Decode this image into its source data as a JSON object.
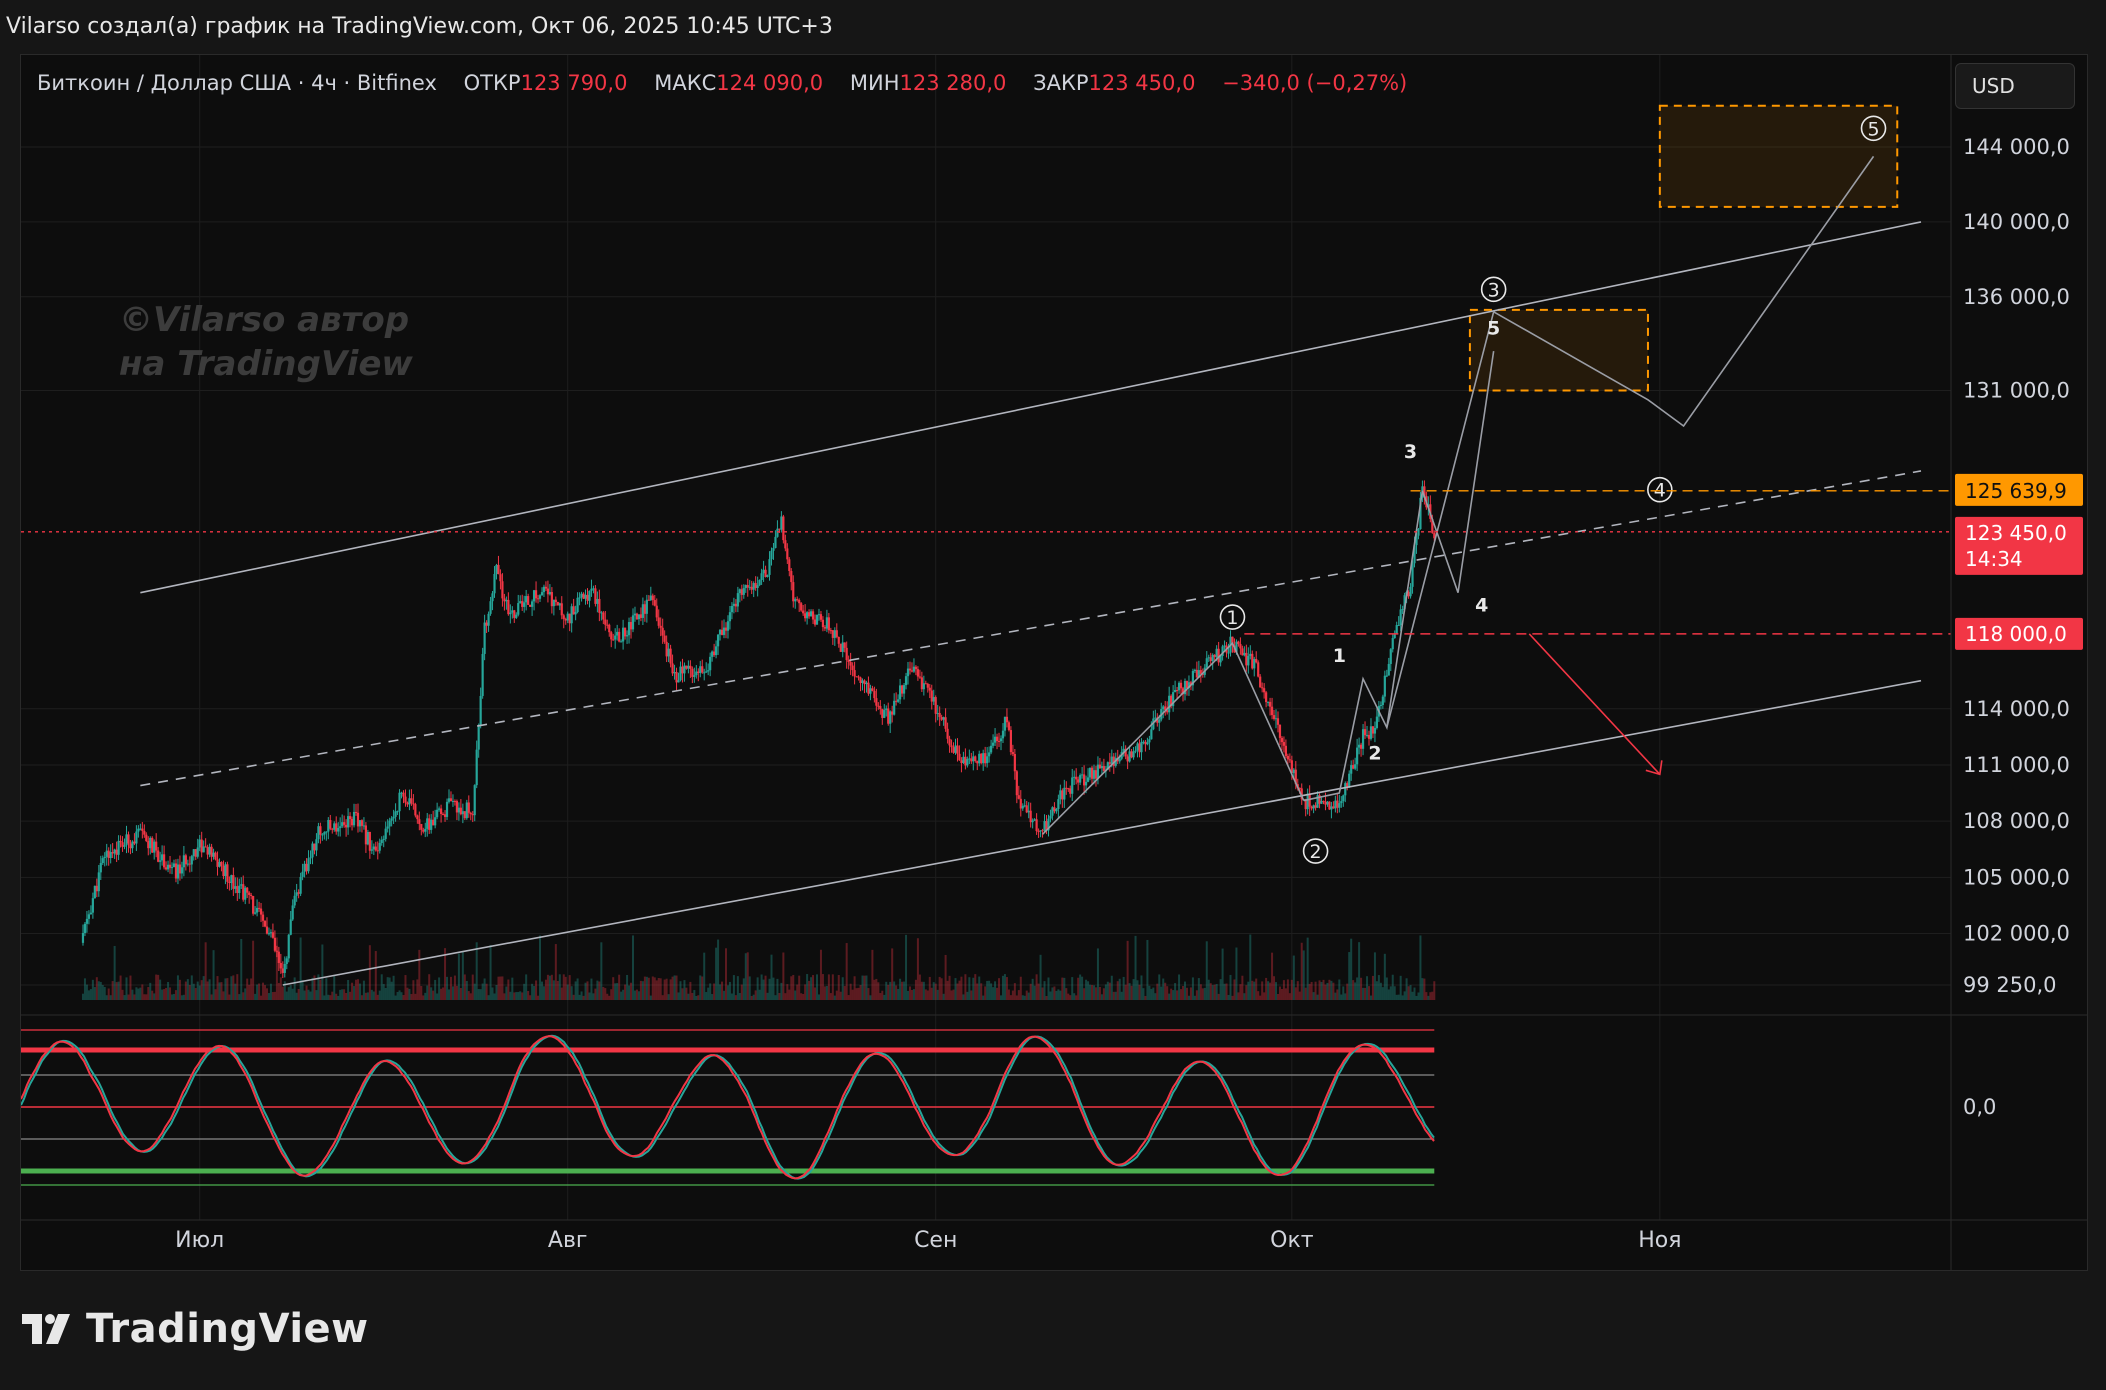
{
  "header": {
    "title": "Vilarso создал(а) график на TradingView.com, Окт 06, 2025 10:45 UTC+3"
  },
  "legend": {
    "symbol": "Биткоин / Доллар США · 4ч · Bitfinex",
    "open_label": "ОТКР",
    "open_value": "123 790,0",
    "high_label": "МАКС",
    "high_value": "124 090,0",
    "low_label": "МИН",
    "low_value": "123 280,0",
    "close_label": "ЗАКР",
    "close_value": "123 450,0",
    "change": "−340,0 (−0,27%)"
  },
  "currency_button": "USD",
  "watermark": {
    "line1": "©Vilarso автор",
    "line2": "на TradingView"
  },
  "footer": {
    "brand": "TradingView"
  },
  "colors": {
    "up": "#26a69a",
    "down": "#f23645",
    "accent": "#ff9800",
    "channel": "#b2b5be",
    "background": "#0d0d0d"
  },
  "price_badges": {
    "target": "125 639,9",
    "last": "123 450,0",
    "countdown": "14:34",
    "level": "118 000,0"
  },
  "wave_labels": {
    "main": [
      "1",
      "2",
      "3",
      "4",
      "5"
    ],
    "sub": [
      "1",
      "2",
      "3",
      "4",
      "5"
    ]
  },
  "chart_data": {
    "type": "candlestick",
    "title": "Биткоин / Доллар США · 4ч · Bitfinex",
    "x_ticks": [
      "Июл",
      "Авг",
      "Сен",
      "Окт",
      "Ноя"
    ],
    "x_tick_dates": [
      "2025-07-01",
      "2025-08-01",
      "2025-09-01",
      "2025-10-01",
      "2025-11-01"
    ],
    "y_ticks": [
      "144 000,0",
      "140 000,0",
      "136 000,0",
      "131 000,0",
      "114 000,0",
      "111 000,0",
      "108 000,0",
      "105 000,0",
      "102 000,0",
      "99 250,0"
    ],
    "y_tick_values": [
      144000,
      140000,
      136000,
      131000,
      114000,
      111000,
      108000,
      105000,
      102000,
      99250
    ],
    "oscillator_ticks": [
      "0,0"
    ],
    "last_price": 123450,
    "price_path": [
      [
        "2025-06-21",
        101500
      ],
      [
        "2025-06-23",
        106200
      ],
      [
        "2025-06-26",
        107300
      ],
      [
        "2025-06-29",
        105200
      ],
      [
        "2025-07-01",
        106800
      ],
      [
        "2025-07-05",
        104000
      ],
      [
        "2025-07-07",
        101800
      ],
      [
        "2025-07-08",
        99600
      ],
      [
        "2025-07-09",
        103800
      ],
      [
        "2025-07-11",
        107400
      ],
      [
        "2025-07-14",
        108200
      ],
      [
        "2025-07-16",
        106200
      ],
      [
        "2025-07-18",
        109500
      ],
      [
        "2025-07-20",
        107600
      ],
      [
        "2025-07-22",
        108800
      ],
      [
        "2025-07-24",
        108500
      ],
      [
        "2025-07-25",
        118200
      ],
      [
        "2025-07-26",
        121400
      ],
      [
        "2025-07-27",
        119000
      ],
      [
        "2025-07-30",
        120300
      ],
      [
        "2025-08-01",
        118800
      ],
      [
        "2025-08-03",
        120500
      ],
      [
        "2025-08-05",
        117600
      ],
      [
        "2025-08-08",
        119800
      ],
      [
        "2025-08-10",
        115800
      ],
      [
        "2025-08-13",
        116500
      ],
      [
        "2025-08-15",
        119600
      ],
      [
        "2025-08-18",
        121700
      ],
      [
        "2025-08-19",
        124000
      ],
      [
        "2025-08-20",
        119600
      ],
      [
        "2025-08-23",
        118500
      ],
      [
        "2025-08-25",
        116100
      ],
      [
        "2025-08-28",
        113500
      ],
      [
        "2025-08-30",
        116200
      ],
      [
        "2025-09-01",
        114000
      ],
      [
        "2025-09-03",
        111400
      ],
      [
        "2025-09-05",
        111200
      ],
      [
        "2025-09-07",
        113300
      ],
      [
        "2025-09-08",
        109000
      ],
      [
        "2025-09-10",
        107500
      ],
      [
        "2025-09-12",
        109800
      ],
      [
        "2025-09-15",
        110800
      ],
      [
        "2025-09-18",
        111900
      ],
      [
        "2025-09-21",
        114600
      ],
      [
        "2025-09-23",
        116000
      ],
      [
        "2025-09-26",
        117500
      ],
      [
        "2025-09-28",
        116200
      ],
      [
        "2025-09-30",
        112500
      ],
      [
        "2025-10-02",
        109100
      ],
      [
        "2025-10-05",
        108900
      ],
      [
        "2025-10-07",
        112600
      ],
      [
        "2025-10-08",
        113000
      ],
      [
        "2025-10-10",
        118900
      ],
      [
        "2025-10-11",
        120700
      ],
      [
        "2025-10-12",
        125639.9
      ],
      [
        "2025-10-13",
        123450
      ]
    ],
    "channel": {
      "upper": [
        [
          "2025-06-26",
          120200
        ],
        [
          "2025-11-23",
          140000
        ]
      ],
      "lower": [
        [
          "2025-07-08",
          99250
        ],
        [
          "2025-11-23",
          115500
        ]
      ],
      "median": [
        [
          "2025-06-26",
          109900
        ],
        [
          "2025-11-23",
          126700
        ]
      ]
    },
    "zones": [
      {
        "from": "2025-10-16",
        "to": "2025-10-31",
        "low": 131000,
        "high": 135300
      },
      {
        "from": "2025-11-01",
        "to": "2025-11-21",
        "low": 140800,
        "high": 146200
      }
    ],
    "levels": [
      {
        "label": "125 639,9",
        "value": 125639.9,
        "style": "dashed-orange"
      },
      {
        "label": "123 450,0",
        "value": 123450,
        "style": "dotted-red"
      },
      {
        "label": "118 000,0",
        "value": 118000,
        "style": "dashed-red"
      }
    ]
  }
}
